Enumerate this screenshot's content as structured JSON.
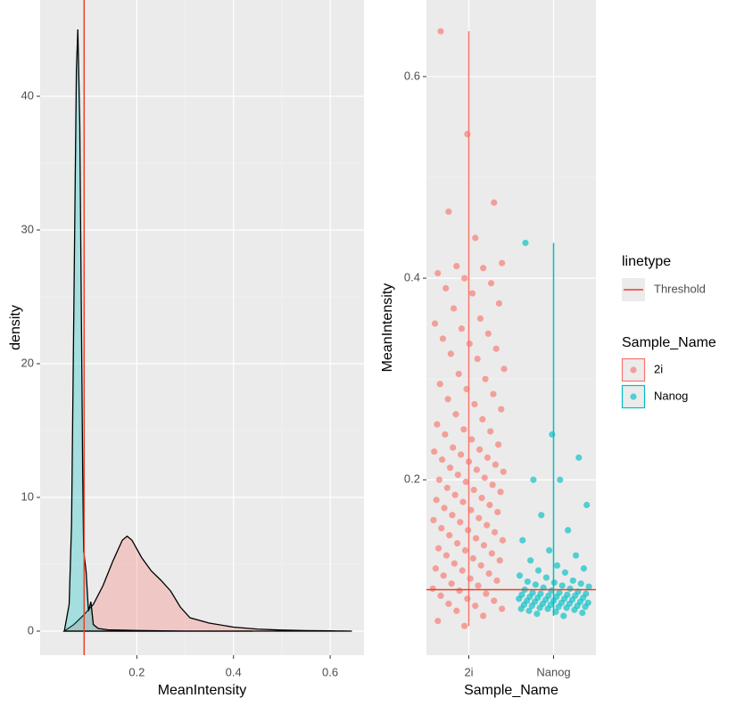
{
  "chart_data": [
    {
      "type": "density",
      "x_label": "MeanIntensity",
      "y_label": "density",
      "xlim": [
        0,
        0.67
      ],
      "ylim": [
        -1.8,
        47.2
      ],
      "xticks": [
        0.2,
        0.4,
        0.6
      ],
      "yticks": [
        0,
        10,
        20,
        30,
        40
      ],
      "threshold": 0.091,
      "threshold_color": "#e8402a",
      "series": [
        {
          "name": "2i",
          "color": "#F8766D",
          "x": [
            0.05,
            0.07,
            0.09,
            0.11,
            0.13,
            0.15,
            0.17,
            0.18,
            0.19,
            0.21,
            0.23,
            0.25,
            0.27,
            0.29,
            0.31,
            0.35,
            0.4,
            0.45,
            0.5,
            0.55,
            0.6,
            0.645
          ],
          "values": [
            0,
            0.5,
            1.2,
            2.0,
            3.4,
            5.2,
            6.8,
            7.1,
            6.8,
            5.5,
            4.5,
            3.8,
            3.0,
            1.8,
            1.0,
            0.6,
            0.3,
            0.15,
            0.08,
            0.04,
            0.02,
            0
          ]
        },
        {
          "name": "Nanog",
          "color": "#00BFC4",
          "x": [
            0.05,
            0.06,
            0.065,
            0.07,
            0.075,
            0.078,
            0.082,
            0.085,
            0.088,
            0.09,
            0.095,
            0.1,
            0.105,
            0.11,
            0.12,
            0.14,
            0.2,
            0.25,
            0.3,
            0.44
          ],
          "values": [
            0,
            2,
            8,
            25,
            42,
            45,
            38,
            25,
            12,
            6,
            4.5,
            1.5,
            2.2,
            0.5,
            0.2,
            0.1,
            0.05,
            0.02,
            0,
            0
          ]
        }
      ]
    },
    {
      "type": "strip",
      "x_label": "Sample_Name",
      "y_label": "MeanIntensity",
      "categories": [
        "2i",
        "Nanog"
      ],
      "ylim": [
        0.026,
        0.676
      ],
      "yticks": [
        0.2,
        0.4,
        0.6
      ],
      "threshold": 0.091,
      "threshold_color": "#e8402a",
      "ranges": [
        [
          0.055,
          0.645
        ],
        [
          0.065,
          0.435
        ]
      ],
      "legend": {
        "linetype_title": "linetype",
        "linetype_label": "Threshold",
        "color_title": "Sample_Name"
      },
      "series": [
        {
          "name": "2i",
          "color": "#F8766D",
          "values": [
            0.645,
            0.543,
            0.475,
            0.466,
            0.44,
            0.415,
            0.412,
            0.41,
            0.405,
            0.4,
            0.395,
            0.39,
            0.385,
            0.375,
            0.37,
            0.36,
            0.355,
            0.35,
            0.345,
            0.34,
            0.335,
            0.33,
            0.325,
            0.32,
            0.31,
            0.305,
            0.3,
            0.295,
            0.29,
            0.285,
            0.28,
            0.275,
            0.27,
            0.265,
            0.26,
            0.255,
            0.25,
            0.248,
            0.245,
            0.24,
            0.235,
            0.232,
            0.23,
            0.228,
            0.225,
            0.222,
            0.22,
            0.218,
            0.215,
            0.212,
            0.21,
            0.208,
            0.205,
            0.202,
            0.2,
            0.198,
            0.195,
            0.192,
            0.19,
            0.188,
            0.185,
            0.182,
            0.18,
            0.178,
            0.175,
            0.172,
            0.17,
            0.168,
            0.165,
            0.162,
            0.16,
            0.158,
            0.155,
            0.152,
            0.15,
            0.148,
            0.145,
            0.142,
            0.14,
            0.137,
            0.135,
            0.132,
            0.13,
            0.127,
            0.125,
            0.122,
            0.12,
            0.117,
            0.115,
            0.112,
            0.11,
            0.107,
            0.105,
            0.102,
            0.1,
            0.097,
            0.095,
            0.092,
            0.09,
            0.087,
            0.085,
            0.082,
            0.08,
            0.077,
            0.075,
            0.072,
            0.07,
            0.065,
            0.06,
            0.055
          ]
        },
        {
          "name": "Nanog",
          "color": "#00BFC4",
          "values": [
            0.435,
            0.245,
            0.222,
            0.2,
            0.2,
            0.175,
            0.165,
            0.15,
            0.14,
            0.13,
            0.125,
            0.12,
            0.115,
            0.112,
            0.11,
            0.108,
            0.105,
            0.103,
            0.1,
            0.099,
            0.098,
            0.097,
            0.096,
            0.095,
            0.094,
            0.093,
            0.092,
            0.091,
            0.09,
            0.089,
            0.088,
            0.088,
            0.087,
            0.087,
            0.086,
            0.086,
            0.085,
            0.085,
            0.084,
            0.084,
            0.083,
            0.083,
            0.082,
            0.082,
            0.081,
            0.081,
            0.08,
            0.08,
            0.079,
            0.079,
            0.078,
            0.078,
            0.077,
            0.077,
            0.076,
            0.076,
            0.075,
            0.075,
            0.074,
            0.074,
            0.073,
            0.073,
            0.072,
            0.072,
            0.071,
            0.07,
            0.069,
            0.068,
            0.067,
            0.065
          ]
        }
      ]
    }
  ]
}
